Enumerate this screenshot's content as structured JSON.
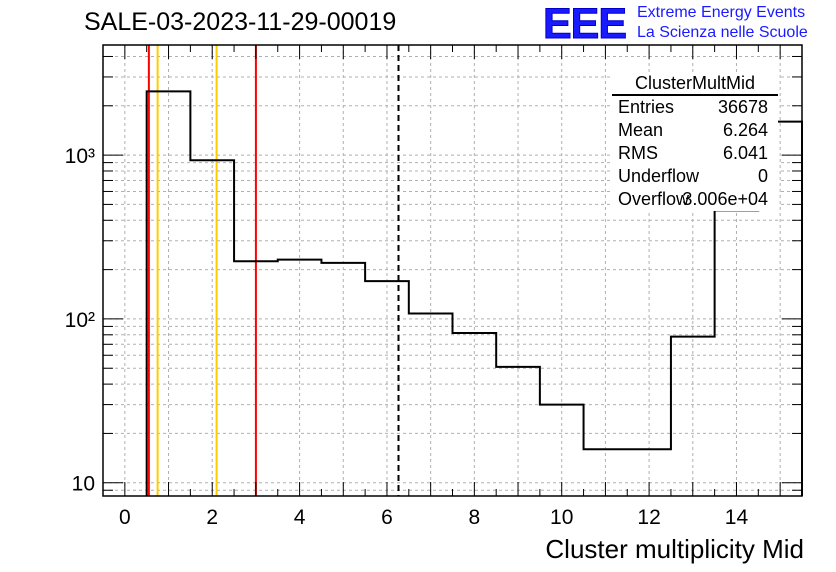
{
  "title": "SALE-03-2023-11-29-00019",
  "logo": {
    "text": "EEE",
    "line1": "Extreme Energy Events",
    "line2": "La Scienza nelle Scuole",
    "color": "#1a1aff"
  },
  "stats_box": {
    "name": "ClusterMultMid",
    "rows": [
      {
        "key": "Entries",
        "value": "36678"
      },
      {
        "key": "Mean",
        "value": "6.264"
      },
      {
        "key": "RMS",
        "value": "6.041"
      },
      {
        "key": "Underflow",
        "value": "0"
      },
      {
        "key": "Overflow",
        "value": "3.006e+04"
      }
    ]
  },
  "chart_data": {
    "type": "histogram-step",
    "xlabel": "Cluster multiplicity Mid",
    "ylabel": "",
    "xlim": [
      -0.5,
      15.5
    ],
    "ylim": [
      8.3,
      4700
    ],
    "yscale": "log",
    "grid": true,
    "x_ticks": [
      0,
      2,
      4,
      6,
      8,
      10,
      12,
      14
    ],
    "y_ticks": [
      {
        "value": 10,
        "label": "10"
      },
      {
        "value": 100,
        "label": "10²"
      },
      {
        "value": 1000,
        "label": "10³"
      }
    ],
    "bins": [
      {
        "low": 0.5,
        "high": 1.5,
        "count": 2450
      },
      {
        "low": 1.5,
        "high": 2.5,
        "count": 930
      },
      {
        "low": 2.5,
        "high": 3.5,
        "count": 225
      },
      {
        "low": 3.5,
        "high": 4.5,
        "count": 230
      },
      {
        "low": 4.5,
        "high": 5.5,
        "count": 220
      },
      {
        "low": 5.5,
        "high": 6.5,
        "count": 170
      },
      {
        "low": 6.5,
        "high": 7.5,
        "count": 108
      },
      {
        "low": 7.5,
        "high": 8.5,
        "count": 82
      },
      {
        "low": 8.5,
        "high": 9.5,
        "count": 51
      },
      {
        "low": 9.5,
        "high": 10.5,
        "count": 30
      },
      {
        "low": 10.5,
        "high": 12.5,
        "count": 16
      },
      {
        "low": 12.5,
        "high": 13.5,
        "count": 78
      },
      {
        "low": 13.5,
        "high": 14.5,
        "count": 460
      },
      {
        "low": 14.5,
        "high": 15.5,
        "count": 1600
      }
    ],
    "vertical_lines": [
      {
        "x": 0.55,
        "color": "#ff0000",
        "style": "solid"
      },
      {
        "x": 0.75,
        "color": "#ffcc00",
        "style": "solid"
      },
      {
        "x": 2.1,
        "color": "#ffcc00",
        "style": "solid"
      },
      {
        "x": 3.0,
        "color": "#ff0000",
        "style": "solid"
      },
      {
        "x": 6.264,
        "color": "#000000",
        "style": "dashed"
      }
    ]
  }
}
